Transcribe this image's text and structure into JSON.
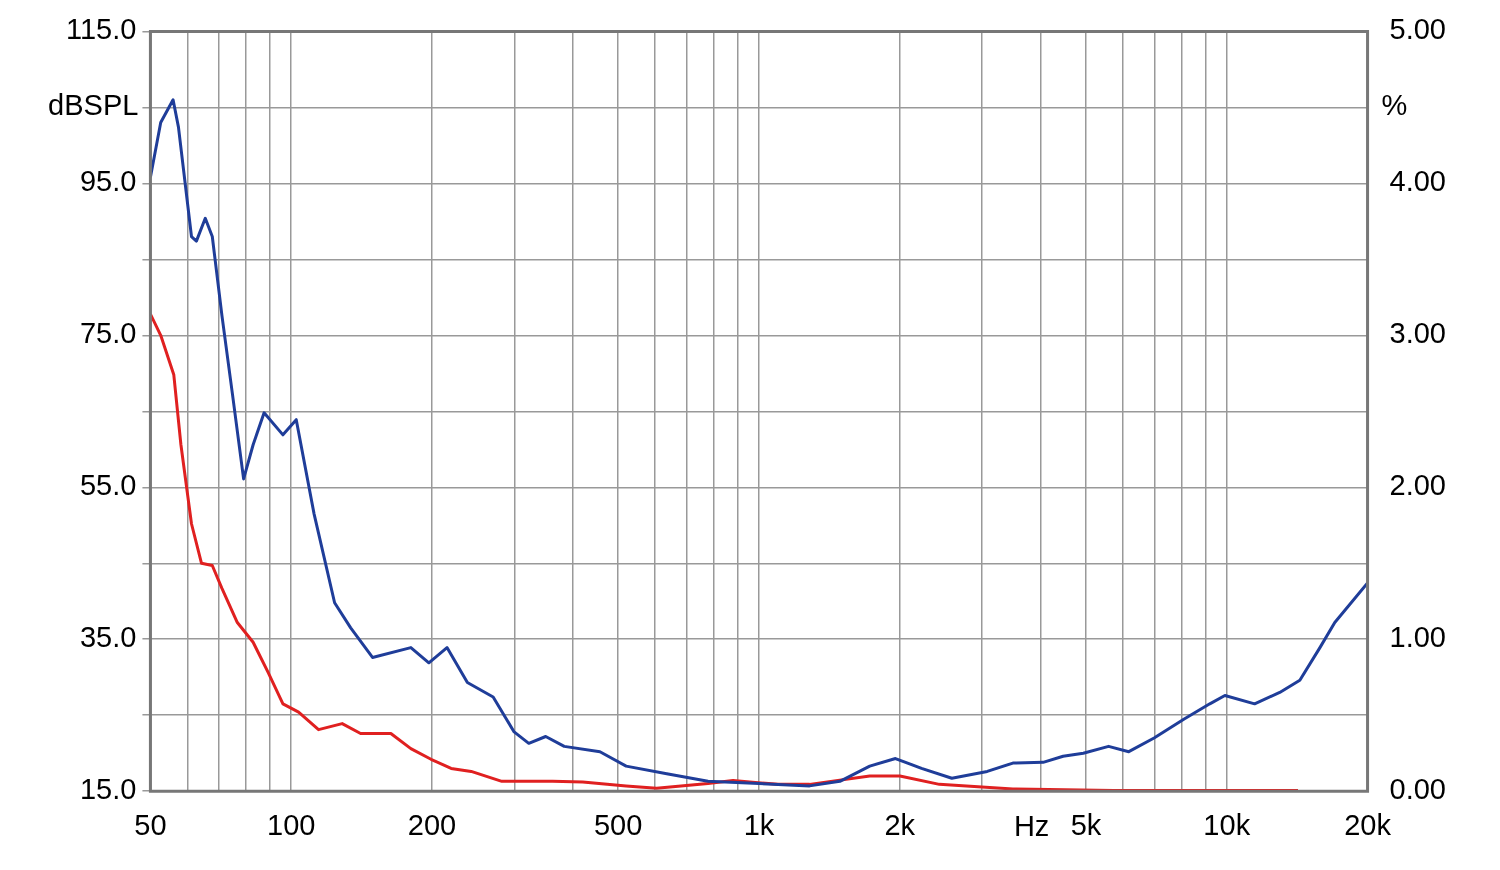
{
  "chart_data": {
    "type": "line",
    "xlabel": "Hz",
    "ylabel": "dBSPL",
    "y2label": "%",
    "log": "x",
    "grid": true,
    "xlim": [
      50,
      20000
    ],
    "xticks": [
      50,
      {
        "value": 60,
        "label": null
      },
      {
        "value": 70,
        "label": null
      },
      {
        "value": 80,
        "label": null
      },
      {
        "value": 90,
        "label": null
      },
      100,
      200,
      {
        "value": 300,
        "label": null
      },
      {
        "value": 400,
        "label": null
      },
      500,
      {
        "value": 600,
        "label": null
      },
      {
        "value": 700,
        "label": null
      },
      {
        "value": 800,
        "label": null
      },
      {
        "value": 900,
        "label": null
      },
      {
        "value": 1000,
        "label": "1k"
      },
      {
        "value": 2000,
        "label": "2k"
      },
      {
        "value": 3000,
        "label": null
      },
      {
        "value": 4000,
        "label": null
      },
      {
        "value": 5000,
        "label": "5k"
      },
      {
        "value": 6000,
        "label": null
      },
      {
        "value": 7000,
        "label": null
      },
      {
        "value": 8000,
        "label": null
      },
      {
        "value": 9000,
        "label": null
      },
      {
        "value": 10000,
        "label": "10k"
      },
      {
        "value": 20000,
        "label": "20k"
      }
    ],
    "ylim": [
      15,
      115
    ],
    "yticks": [
      {
        "value": 15,
        "label": "15.0"
      },
      {
        "value": 25,
        "label": null
      },
      {
        "value": 35,
        "label": "35.0"
      },
      {
        "value": 45,
        "label": null
      },
      {
        "value": 55,
        "label": "55.0"
      },
      {
        "value": 65,
        "label": null
      },
      {
        "value": 75,
        "label": "75.0"
      },
      {
        "value": 85,
        "label": null
      },
      {
        "value": 95,
        "label": "95.0"
      },
      {
        "value": 105,
        "label": null
      },
      {
        "value": 115,
        "label": "115.0"
      }
    ],
    "y2lim": [
      0,
      5
    ],
    "y2ticks": [
      {
        "value": 0,
        "label": "0.00"
      },
      {
        "value": 1,
        "label": "1.00"
      },
      {
        "value": 2,
        "label": "2.00"
      },
      {
        "value": 3,
        "label": "3.00"
      },
      {
        "value": 4,
        "label": "4.00"
      },
      {
        "value": 5,
        "label": "5.00"
      }
    ],
    "series": [
      {
        "color": "#1f3d99",
        "x": [
          50,
          52.6,
          55.9,
          57.4,
          61.2,
          62.7,
          65.5,
          67.8,
          71.1,
          74.9,
          79.1,
          82.9,
          87.5,
          96,
          102.5,
          111.9,
          123.8,
          134,
          149.2,
          180.2,
          196.9,
          215.3,
          238,
          270.2,
          299.6,
          322,
          350,
          383.4,
          457.1,
          520,
          635,
          778,
          1000,
          1283,
          1489,
          1725,
          1958,
          2226,
          2584,
          3076,
          3490,
          4050,
          4468,
          4935,
          5590,
          6174,
          6993,
          8110,
          9200,
          9910,
          11470,
          12980,
          14330,
          15820,
          17020,
          20000
        ],
        "values": [
          95.8,
          103,
          106,
          102.4,
          88,
          87.4,
          90.4,
          88,
          77.6,
          67.2,
          56.1,
          60.6,
          64.8,
          61.9,
          63.9,
          51.5,
          39.8,
          36.5,
          32.6,
          33.9,
          31.9,
          33.9,
          29.3,
          27.4,
          22.8,
          21.3,
          22.2,
          20.9,
          20.2,
          18.3,
          17.3,
          16.3,
          16,
          15.7,
          16.3,
          18.3,
          19.3,
          18,
          16.7,
          17.6,
          18.7,
          18.8,
          19.6,
          20,
          20.9,
          20.2,
          22,
          24.5,
          26.5,
          27.6,
          26.5,
          28,
          29.6,
          33.9,
          37.2,
          42.4
        ]
      },
      {
        "color": "#e02020",
        "x": [
          50,
          52.6,
          56.1,
          58.1,
          61.2,
          64.3,
          67.8,
          71.1,
          76.7,
          82.9,
          89.3,
          96,
          103.7,
          114.4,
          128.5,
          140.7,
          163.3,
          180.2,
          199,
          219.7,
          242.5,
          282,
          362,
          420,
          520,
          604,
          778,
          880,
          1101,
          1283,
          1725,
          2001,
          2430,
          3490,
          5730,
          14200
        ],
        "values": [
          77.8,
          75,
          69.8,
          60.6,
          50.2,
          45,
          44.7,
          41.7,
          37.2,
          34.6,
          30.6,
          26.5,
          25.4,
          23.1,
          23.9,
          22.6,
          22.6,
          20.6,
          19.2,
          18,
          17.6,
          16.3,
          16.3,
          16.2,
          15.7,
          15.4,
          16,
          16.4,
          15.9,
          15.9,
          17,
          17,
          15.9,
          15.3,
          15.1,
          15.1
        ]
      }
    ]
  }
}
